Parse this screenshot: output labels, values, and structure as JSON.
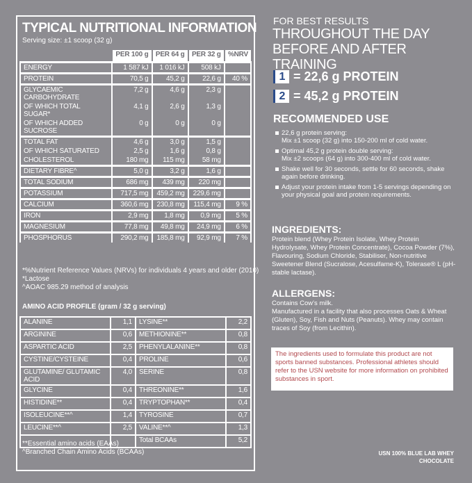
{
  "nutrition": {
    "title": "TYPICAL NUTRITIONAL INFORMATION",
    "serving": "Serving size: ±1 scoop (32 g)",
    "columns": [
      "PER 100 g",
      "PER 64 g",
      "PER 32 g",
      "%NRV"
    ],
    "groups": [
      [
        {
          "label": "ENERGY",
          "values": [
            "1 587 kJ",
            "1 016 kJ",
            "508 kJ"
          ]
        }
      ],
      [
        {
          "label": "PROTEIN",
          "values": [
            "70,5 g",
            "45,2 g",
            "22,6 g"
          ],
          "nrv": "40 %"
        }
      ],
      [
        {
          "label": "GLYCAEMIC CARBOHYDRATE",
          "values": [
            "7,2 g",
            "4,6 g",
            "2,3 g"
          ]
        },
        {
          "label": "OF WHICH TOTAL SUGAR*",
          "values": [
            "4,1 g",
            "2,6 g",
            "1,3 g"
          ]
        },
        {
          "label": "OF WHICH ADDED SUCROSE",
          "values": [
            "0 g",
            "0 g",
            "0 g"
          ]
        }
      ],
      [
        {
          "label": "TOTAL FAT",
          "values": [
            "4,6 g",
            "3,0 g",
            "1,5 g"
          ]
        },
        {
          "label": "OF WHICH SATURATED",
          "values": [
            "2,5 g",
            "1,6 g",
            "0,8 g"
          ]
        },
        {
          "label": "CHOLESTEROL",
          "values": [
            "180 mg",
            "115 mg",
            "58 mg"
          ]
        }
      ],
      [
        {
          "label": "DIETARY FIBRE^",
          "values": [
            "5,0 g",
            "3,2 g",
            "1,6 g"
          ]
        }
      ],
      [
        {
          "label": "TOTAL SODIUM",
          "values": [
            "686 mg",
            "439 mg",
            "220 mg"
          ]
        }
      ],
      [
        {
          "label": "POTASSIUM",
          "values": [
            "717,5 mg",
            "459,2 mg",
            "229,6 mg"
          ]
        }
      ],
      [
        {
          "label": "CALCIUM",
          "values": [
            "360,6 mg",
            "230,8 mg",
            "115,4 mg"
          ],
          "nrv": "9 %"
        }
      ],
      [
        {
          "label": "IRON",
          "values": [
            "2,9 mg",
            "1,8 mg",
            "0,9 mg"
          ],
          "nrv": "5 %"
        }
      ],
      [
        {
          "label": "MAGNESIUM",
          "values": [
            "77,8 mg",
            "49,8 mg",
            "24,9 mg"
          ],
          "nrv": "6 %"
        }
      ],
      [
        {
          "label": "PHOSPHORUS",
          "values": [
            "290,2 mg",
            "185,8 mg",
            "92,9 mg"
          ],
          "nrv": "7 %"
        }
      ]
    ],
    "footnotes": [
      "*%Nutrient Reference Values (NRVs) for individuals 4 years and older (2010)",
      "*Lactose",
      "^AOAC 985.29 method of analysis"
    ]
  },
  "amino": {
    "title": "AMINO ACID PROFILE (gram / 32 g serving)",
    "left": [
      {
        "name": "ALANINE",
        "value": "1,1"
      },
      {
        "name": "ARGININE",
        "value": "0,6"
      },
      {
        "name": "ASPARTIC ACID",
        "value": "2,5"
      },
      {
        "name": "CYSTINE/CYSTEINE",
        "value": "0,4"
      },
      {
        "name": "GLUTAMINE/ GLUTAMIC ACID",
        "value": "4,0"
      },
      {
        "name": "GLYCINE",
        "value": "0,4"
      },
      {
        "name": "HISTIDINE**",
        "value": "0,4"
      },
      {
        "name": "ISOLEUCINE**^",
        "value": "1,4"
      },
      {
        "name": "LEUCINE**^",
        "value": "2,5"
      }
    ],
    "right": [
      {
        "name": "LYSINE**",
        "value": "2,2"
      },
      {
        "name": "METHIONINE**",
        "value": "0,8"
      },
      {
        "name": "PHENYLALANINE**",
        "value": "0,8"
      },
      {
        "name": "PROLINE",
        "value": "0,6"
      },
      {
        "name": "SERINE",
        "value": "0,8"
      },
      {
        "name": "THREONINE**",
        "value": "1,6"
      },
      {
        "name": "TRYPTOPHAN**",
        "value": "0,4"
      },
      {
        "name": "TYROSINE",
        "value": "0,7"
      },
      {
        "name": "VALINE**^",
        "value": "1,3"
      },
      {
        "name": "Total BCAAs",
        "value": "5,2"
      }
    ],
    "footnotes": [
      "**Essential amino acids (EAAs)",
      "^Branched Chain Amino Acids (BCAAs)"
    ]
  },
  "usage": {
    "intro": "FOR BEST RESULTS",
    "headline": [
      "THROUGHOUT THE DAY",
      "BEFORE AND AFTER TRAINING"
    ],
    "servings": [
      {
        "scoops": "1",
        "protein": "= 22,6 g PROTEIN"
      },
      {
        "scoops": "2",
        "protein": "= 45,2 g PROTEIN"
      }
    ]
  },
  "recommended": {
    "title": "RECOMMENDED USE",
    "items": [
      [
        "22,6 g protein serving:",
        "Mix ±1 scoop (32 g) into 150-200 ml of cold water."
      ],
      [
        "Optimal 45,2 g protein double serving:",
        "Mix ±2 scoops (64 g) into 300-400 ml of cold water."
      ],
      [
        "Shake well for 30 seconds, settle for 60 seconds, shake again before drinking."
      ],
      [
        "Adjust your protein intake from 1-5 servings depending on your physical goal and protein requirements."
      ]
    ]
  },
  "ingredients": {
    "title": "INGREDIENTS:",
    "text": "Protein blend (Whey Protein Isolate, Whey Protein Hydrolysate, Whey Protein Concentrate), Cocoa Powder (7%), Flavouring, Sodium Chloride, Stabiliser, Non-nutritive Sweetener Blend (Sucralose, Acesulfame-K), Tolerase® L (pH-stable lactase)."
  },
  "allergens": {
    "title": "ALLERGENS:",
    "lines": [
      "Contains Cow's milk.",
      "Manufactured in a facility that also processes Oats & Wheat (Gluten), Soy, Fish and Nuts (Peanuts). Whey may contain traces of Soy (from Lecithin)."
    ]
  },
  "notice": "The ingredients used to formulate this product are not sports banned substances. Professional athletes should refer to the USN website for more information on prohibited substances in sport.",
  "product": [
    "USN 100% BLUE LAB WHEY",
    "CHOCOLATE"
  ]
}
